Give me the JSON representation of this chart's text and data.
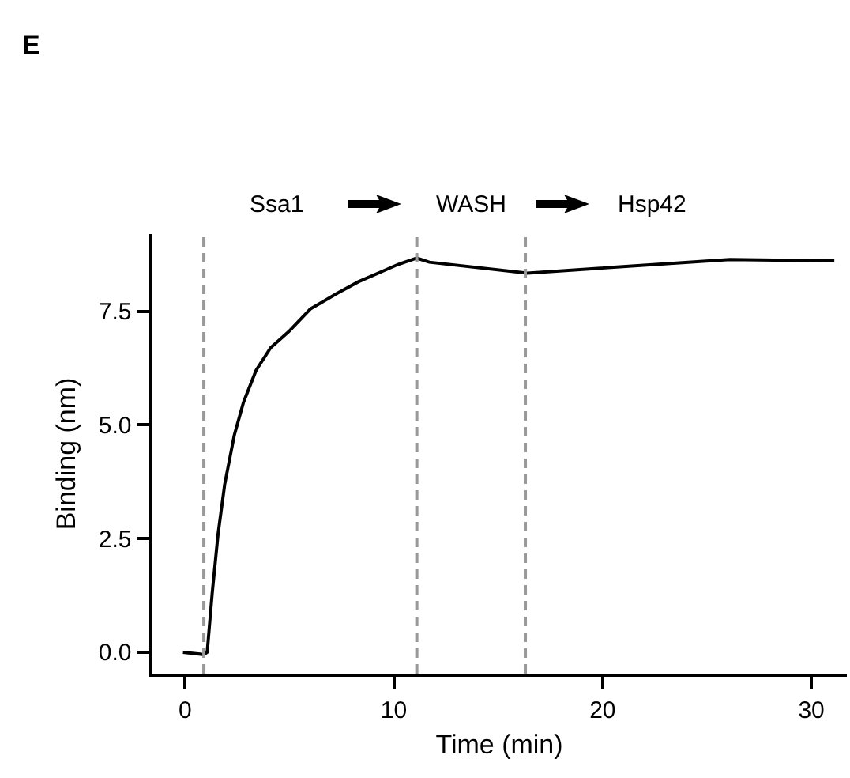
{
  "chart_data": {
    "type": "line",
    "xlabel": "Time (min)",
    "ylabel": "Binding (nm)",
    "annotations": [
      "E",
      "Ssa1",
      "WASH",
      "Hsp42"
    ],
    "series": [
      {
        "color": "#000000",
        "x": [
          -0.1,
          0.9,
          1.06,
          1.3,
          1.58,
          1.9,
          2.36,
          2.8,
          3.4,
          4.1,
          4.96,
          6,
          7.3,
          8.3,
          9.4,
          10.2,
          11.1,
          11.7,
          16.4,
          26.1,
          31.1
        ],
        "values": [
          0,
          -0.05,
          0,
          1.3,
          2.6,
          3.7,
          4.78,
          5.5,
          6.2,
          6.7,
          7.05,
          7.55,
          7.9,
          8.15,
          8.37,
          8.53,
          8.67,
          8.58,
          8.34,
          8.64,
          8.61
        ]
      }
    ],
    "xlim": [
      -1.6,
      31.7
    ],
    "xticks": [
      0,
      10,
      20,
      30
    ],
    "ylim": [
      -0.47,
      9.2
    ],
    "yticks": [
      {
        "value": 0,
        "label": "0.0"
      },
      {
        "value": 2.5,
        "label": "2.5"
      },
      {
        "value": 5,
        "label": "5.0"
      },
      {
        "value": 7.5,
        "label": "7.5"
      }
    ],
    "ref_lines": [
      {
        "axis": "x",
        "value": 0.9,
        "color": "#999999",
        "line_style": "dashed"
      },
      {
        "axis": "x",
        "value": 11.1,
        "color": "#999999",
        "line_style": "dashed"
      },
      {
        "axis": "x",
        "value": 16.3,
        "color": "#999999",
        "line_style": "dashed"
      }
    ],
    "grid": false,
    "marker": "none",
    "line_style": "solid"
  }
}
